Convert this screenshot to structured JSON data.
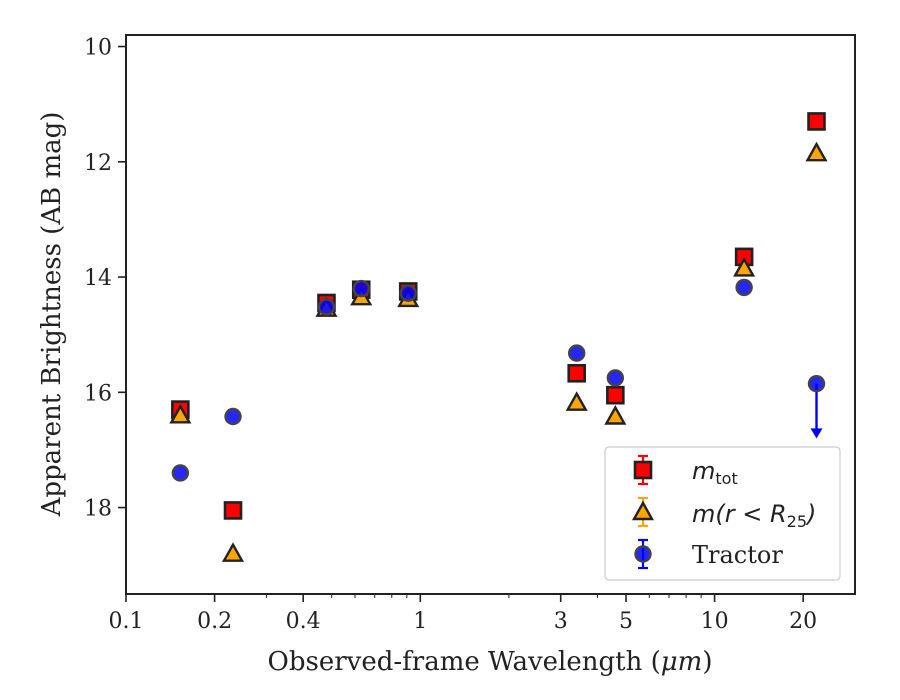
{
  "chart_data": {
    "type": "scatter",
    "xlabel_prefix": "Observed-frame Wavelength (",
    "xlabel_unit": "μm",
    "xlabel_suffix": ")",
    "ylabel": "Apparent Brightness (AB mag)",
    "x_scale": "log",
    "xlim": [
      0.1,
      30
    ],
    "ylim": [
      19.5,
      9.8
    ],
    "y_inverted": true,
    "grid": false,
    "legend_position": "lower-right",
    "x_ticks": [
      {
        "value": 0.1,
        "label": "0.1"
      },
      {
        "value": 0.2,
        "label": "0.2"
      },
      {
        "value": 0.4,
        "label": "0.4"
      },
      {
        "value": 1,
        "label": "1"
      },
      {
        "value": 3,
        "label": "3"
      },
      {
        "value": 5,
        "label": "5"
      },
      {
        "value": 10,
        "label": "10"
      },
      {
        "value": 20,
        "label": "20"
      }
    ],
    "y_ticks": [
      {
        "value": 10,
        "label": "10"
      },
      {
        "value": 12,
        "label": "12"
      },
      {
        "value": 14,
        "label": "14"
      },
      {
        "value": 16,
        "label": "16"
      },
      {
        "value": 18,
        "label": "18"
      }
    ],
    "series": [
      {
        "id": "mtot",
        "name_main": "m",
        "name_sub": "tot",
        "marker": "square",
        "color": "#ff0000",
        "edge": "#222222",
        "points": [
          {
            "x": 0.153,
            "y": 16.3
          },
          {
            "x": 0.231,
            "y": 18.05
          },
          {
            "x": 0.48,
            "y": 14.45
          },
          {
            "x": 0.63,
            "y": 14.22
          },
          {
            "x": 0.91,
            "y": 14.25
          },
          {
            "x": 3.4,
            "y": 15.67
          },
          {
            "x": 4.6,
            "y": 16.05
          },
          {
            "x": 12.6,
            "y": 13.65
          },
          {
            "x": 22.2,
            "y": 11.3
          }
        ]
      },
      {
        "id": "mr25",
        "name_main": "m(r < R",
        "name_sub": "25",
        "name_end": ")",
        "marker": "triangle",
        "color": "#ffa500",
        "edge": "#222222",
        "points": [
          {
            "x": 0.153,
            "y": 16.4
          },
          {
            "x": 0.231,
            "y": 18.8
          },
          {
            "x": 0.48,
            "y": 14.55
          },
          {
            "x": 0.63,
            "y": 14.35
          },
          {
            "x": 0.91,
            "y": 14.38
          },
          {
            "x": 3.4,
            "y": 16.18
          },
          {
            "x": 4.6,
            "y": 16.42
          },
          {
            "x": 12.6,
            "y": 13.85
          },
          {
            "x": 22.2,
            "y": 11.85
          }
        ]
      },
      {
        "id": "tractor",
        "name": "Tractor",
        "marker": "circle",
        "color": "#0000ff",
        "edge": "#444444",
        "points": [
          {
            "x": 0.153,
            "y": 17.4
          },
          {
            "x": 0.231,
            "y": 16.42
          },
          {
            "x": 0.48,
            "y": 14.52
          },
          {
            "x": 0.63,
            "y": 14.2
          },
          {
            "x": 0.91,
            "y": 14.28
          },
          {
            "x": 3.4,
            "y": 15.32
          },
          {
            "x": 4.6,
            "y": 15.75
          },
          {
            "x": 12.6,
            "y": 14.18
          },
          {
            "x": 22.2,
            "y": 15.85,
            "upper_limit": true,
            "arrow_to": 16.8
          }
        ]
      }
    ]
  }
}
